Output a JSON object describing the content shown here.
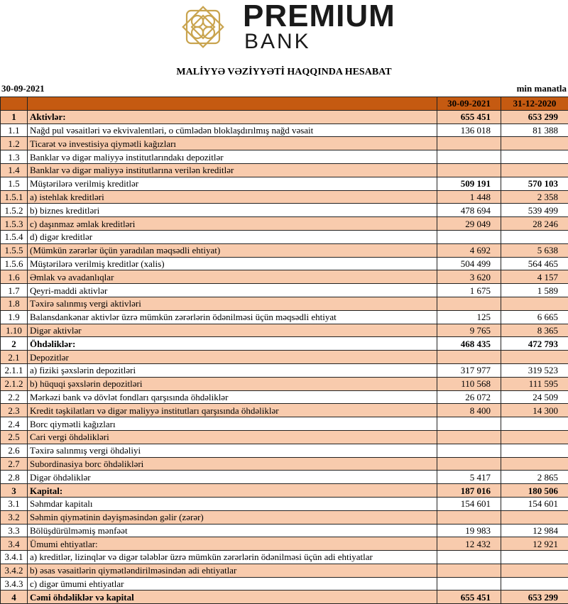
{
  "logo": {
    "line1": "PREMIUM",
    "line2": "BANK",
    "color": "#c9a44f"
  },
  "title": "MALİYYƏ VƏZİYYƏTİ HAQQINDA HESABAT",
  "report_date": "30-09-2021",
  "unit": "min manatla",
  "colors": {
    "header": "#c55a11",
    "shade": "#f8cbad"
  },
  "columns": [
    "30-09-2021",
    "31-12-2020"
  ],
  "rows": [
    {
      "code": "1",
      "label": "Aktivlər:",
      "v1": "655 451",
      "v2": "653 299",
      "bold": "all"
    },
    {
      "code": "1.1",
      "label": "Nağd pul vəsaitləri və  ekvivalentləri, o cümlədən bloklaşdırılmış nağd vəsait",
      "v1": "136 018",
      "v2": "81 388"
    },
    {
      "code": "1.2",
      "label": "Ticarət və investisiya qiymətli kağızları",
      "v1": "",
      "v2": ""
    },
    {
      "code": "1.3",
      "label": "Banklar və digər maliyyə institutlarındakı depozitlər",
      "v1": "",
      "v2": ""
    },
    {
      "code": "1.4",
      "label": "Banklar və digər maliyyə institutlarına verilən kreditlər",
      "v1": "",
      "v2": ""
    },
    {
      "code": "1.5",
      "label": "Müştərilərə verilmiş kreditlər",
      "v1": "509 191",
      "v2": "570 103",
      "bold": "values"
    },
    {
      "code": "1.5.1",
      "label": "a) istehlak kreditləri",
      "v1": "1 448",
      "v2": "2 358"
    },
    {
      "code": "1.5.2",
      "label": "b) biznes kreditləri",
      "v1": "478 694",
      "v2": "539 499"
    },
    {
      "code": "1.5.3",
      "label": "c) daşınmaz əmlak kreditləri",
      "v1": "29 049",
      "v2": "28 246"
    },
    {
      "code": "1.5.4",
      "label": "d) digər kreditlər",
      "v1": "",
      "v2": ""
    },
    {
      "code": "1.5.5",
      "label": "(Mümkün zərərlər üçün yaradılan məqsədli ehtiyat)",
      "v1": "4 692",
      "v2": "5 638"
    },
    {
      "code": "1.5.6",
      "label": "Müştərilərə verilmiş kreditlər (xalis)",
      "v1": "504 499",
      "v2": "564 465"
    },
    {
      "code": "1.6",
      "label": "Əmlak və avadanlıqlar",
      "v1": "3 620",
      "v2": "4 157"
    },
    {
      "code": "1.7",
      "label": "Qeyri-maddi aktivlər",
      "v1": "1 675",
      "v2": "1 589"
    },
    {
      "code": "1.8",
      "label": "Təxirə salınmış vergi aktivləri",
      "v1": "",
      "v2": ""
    },
    {
      "code": "1.9",
      "label": "Balansdankənar aktivlər üzrə mümkün zərərlərin ödənilməsi üçün məqsədli ehtiyat",
      "v1": "125",
      "v2": "6 665"
    },
    {
      "code": "1.10",
      "label": "Digər aktivlər",
      "v1": "9 765",
      "v2": "8 365"
    },
    {
      "code": "2",
      "label": "Öhdəliklər:",
      "v1": "468 435",
      "v2": "472 793",
      "bold": "all"
    },
    {
      "code": "2.1",
      "label": "Depozitlər",
      "v1": "",
      "v2": ""
    },
    {
      "code": "2.1.1",
      "label": "a) fiziki şəxslərin depozitləri",
      "v1": "317 977",
      "v2": "319 523"
    },
    {
      "code": "2.1.2",
      "label": "b) hüquqi şəxslərin depozitləri",
      "v1": "110 568",
      "v2": "111 595"
    },
    {
      "code": "2.2",
      "label": "Mərkəzi bank və dövlət fondları qarşısında öhdəliklər",
      "v1": "26 072",
      "v2": "24 509"
    },
    {
      "code": "2.3",
      "label": "Kredit təşkilatları və digər maliyyə institutları qarşısında öhdəliklər",
      "v1": "8 400",
      "v2": "14 300"
    },
    {
      "code": "2.4",
      "label": "Borc qiymətli kağızları",
      "v1": "",
      "v2": ""
    },
    {
      "code": "2.5",
      "label": "Cari vergi öhdəlikləri",
      "v1": "",
      "v2": ""
    },
    {
      "code": "2.6",
      "label": "Təxirə salınmış vergi öhdəliyi",
      "v1": "",
      "v2": ""
    },
    {
      "code": "2.7",
      "label": "Subordinasiya borc öhdəlikləri",
      "v1": "",
      "v2": ""
    },
    {
      "code": "2.8",
      "label": "Digər öhdəliklər",
      "v1": "5 417",
      "v2": "2 865"
    },
    {
      "code": "3",
      "label": "Kapital:",
      "v1": "187 016",
      "v2": "180 506",
      "bold": "all"
    },
    {
      "code": "3.1",
      "label": "Səhmdar kapitalı",
      "v1": "154 601",
      "v2": "154 601"
    },
    {
      "code": "3.2",
      "label": "Səhmin qiymətinin dəyişməsindən gəlir (zərər)",
      "v1": "",
      "v2": ""
    },
    {
      "code": "3.3",
      "label": "Bölüşdürülməmiş mənfəət",
      "v1": "19 983",
      "v2": "12 984"
    },
    {
      "code": "3.4",
      "label": "Ümumi ehtiyatlar:",
      "v1": "12 432",
      "v2": "12 921"
    },
    {
      "code": "3.4.1",
      "label": "a) kreditlər, lizinqlər və digər tələblər üzrə mümkün zərərlərin ödənilməsi üçün adi ehtiyatlar",
      "v1": "",
      "v2": ""
    },
    {
      "code": "3.4.2",
      "label": "b) əsas vəsaitlərin qiymətləndirilməsindən adi ehtiyatlar",
      "v1": "",
      "v2": ""
    },
    {
      "code": "3.4.3",
      "label": "c) digər ümumi ehtiyatlar",
      "v1": "",
      "v2": ""
    },
    {
      "code": "4",
      "label": "Cəmi öhdəliklər və kapital",
      "v1": "655 451",
      "v2": "653 299",
      "bold": "all"
    }
  ]
}
